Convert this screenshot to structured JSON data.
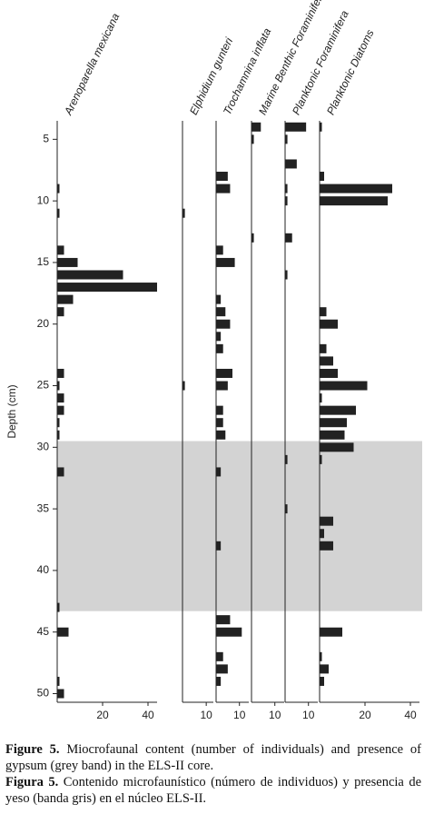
{
  "chart_data": [
    {
      "type": "barh",
      "title": "Arenoparella mexicana",
      "ylabel": "Depth (cm)",
      "ylim": [
        3.5,
        50.7
      ],
      "yticks": [
        5,
        10,
        15,
        20,
        25,
        30,
        35,
        40,
        45,
        50
      ],
      "band": {
        "range": [
          29.5,
          43.3
        ],
        "color": "#d3d3d3"
      },
      "color": "#222222",
      "y": [
        9,
        11,
        14,
        15,
        16,
        17,
        18,
        19,
        24,
        25,
        26,
        27,
        28,
        29,
        32,
        43,
        45,
        49,
        50
      ],
      "values": [
        1,
        1,
        3,
        9,
        29,
        44,
        7,
        3,
        3,
        1,
        3,
        3,
        1,
        1,
        3,
        1,
        5,
        1,
        3
      ],
      "xlim": [
        0,
        44
      ],
      "xticks": [
        20,
        40
      ]
    },
    {
      "type": "barh",
      "title": "Elphidium gunteri",
      "color": "#222222",
      "y": [
        11,
        25
      ],
      "values": [
        1,
        1
      ],
      "xlim": [
        0,
        13
      ],
      "xticks": [
        10
      ]
    },
    {
      "type": "barh",
      "title": "Trochamnina inflata",
      "color": "#222222",
      "y": [
        8,
        9,
        14,
        15,
        18,
        19,
        20,
        21,
        22,
        24,
        25,
        27,
        28,
        29,
        32,
        38,
        44,
        45,
        47,
        48,
        49
      ],
      "values": [
        5,
        6,
        3,
        8,
        2,
        4,
        6,
        2,
        3,
        7,
        5,
        3,
        3,
        4,
        2,
        2,
        6,
        11,
        3,
        5,
        2
      ],
      "xlim": [
        0,
        14
      ],
      "xticks": [
        10
      ]
    },
    {
      "type": "barh",
      "title": "Marine Benthic Foraminifera",
      "color": "#222222",
      "y": [
        4,
        5,
        13
      ],
      "values": [
        4,
        1,
        1
      ],
      "xlim": [
        0,
        14
      ],
      "xticks": [
        10
      ]
    },
    {
      "type": "barh",
      "title": "Planktonic Foraminifera",
      "color": "#222222",
      "y": [
        4,
        5,
        7,
        9,
        10,
        13,
        16,
        31,
        35
      ],
      "values": [
        9,
        1,
        5,
        1,
        1,
        3,
        1,
        1,
        1
      ],
      "xlim": [
        0,
        14
      ],
      "xticks": [
        10
      ]
    },
    {
      "type": "barh",
      "title": "Planktonic Diatoms",
      "color": "#222222",
      "y": [
        4,
        8,
        9,
        10,
        19,
        20,
        22,
        23,
        24,
        25,
        26,
        27,
        28,
        29,
        30,
        31,
        36,
        37,
        38,
        45,
        47,
        48,
        49
      ],
      "values": [
        1,
        2,
        32,
        30,
        3,
        8,
        3,
        6,
        8,
        21,
        1,
        16,
        12,
        11,
        15,
        1,
        6,
        2,
        6,
        10,
        1,
        4,
        2
      ],
      "xlim": [
        0,
        44
      ],
      "xticks": [
        20,
        40
      ]
    }
  ],
  "caption": {
    "en_label": "Figure 5.",
    "en_text": "Miocrofaunal content (number of individuals) and presence of gypsum (grey band) in the ELS-II core.",
    "es_label": "Figura 5.",
    "es_text": "Contenido microfaunístico (número de individuos) y presencia de yeso (banda gris) en el núcleo ELS-II."
  }
}
